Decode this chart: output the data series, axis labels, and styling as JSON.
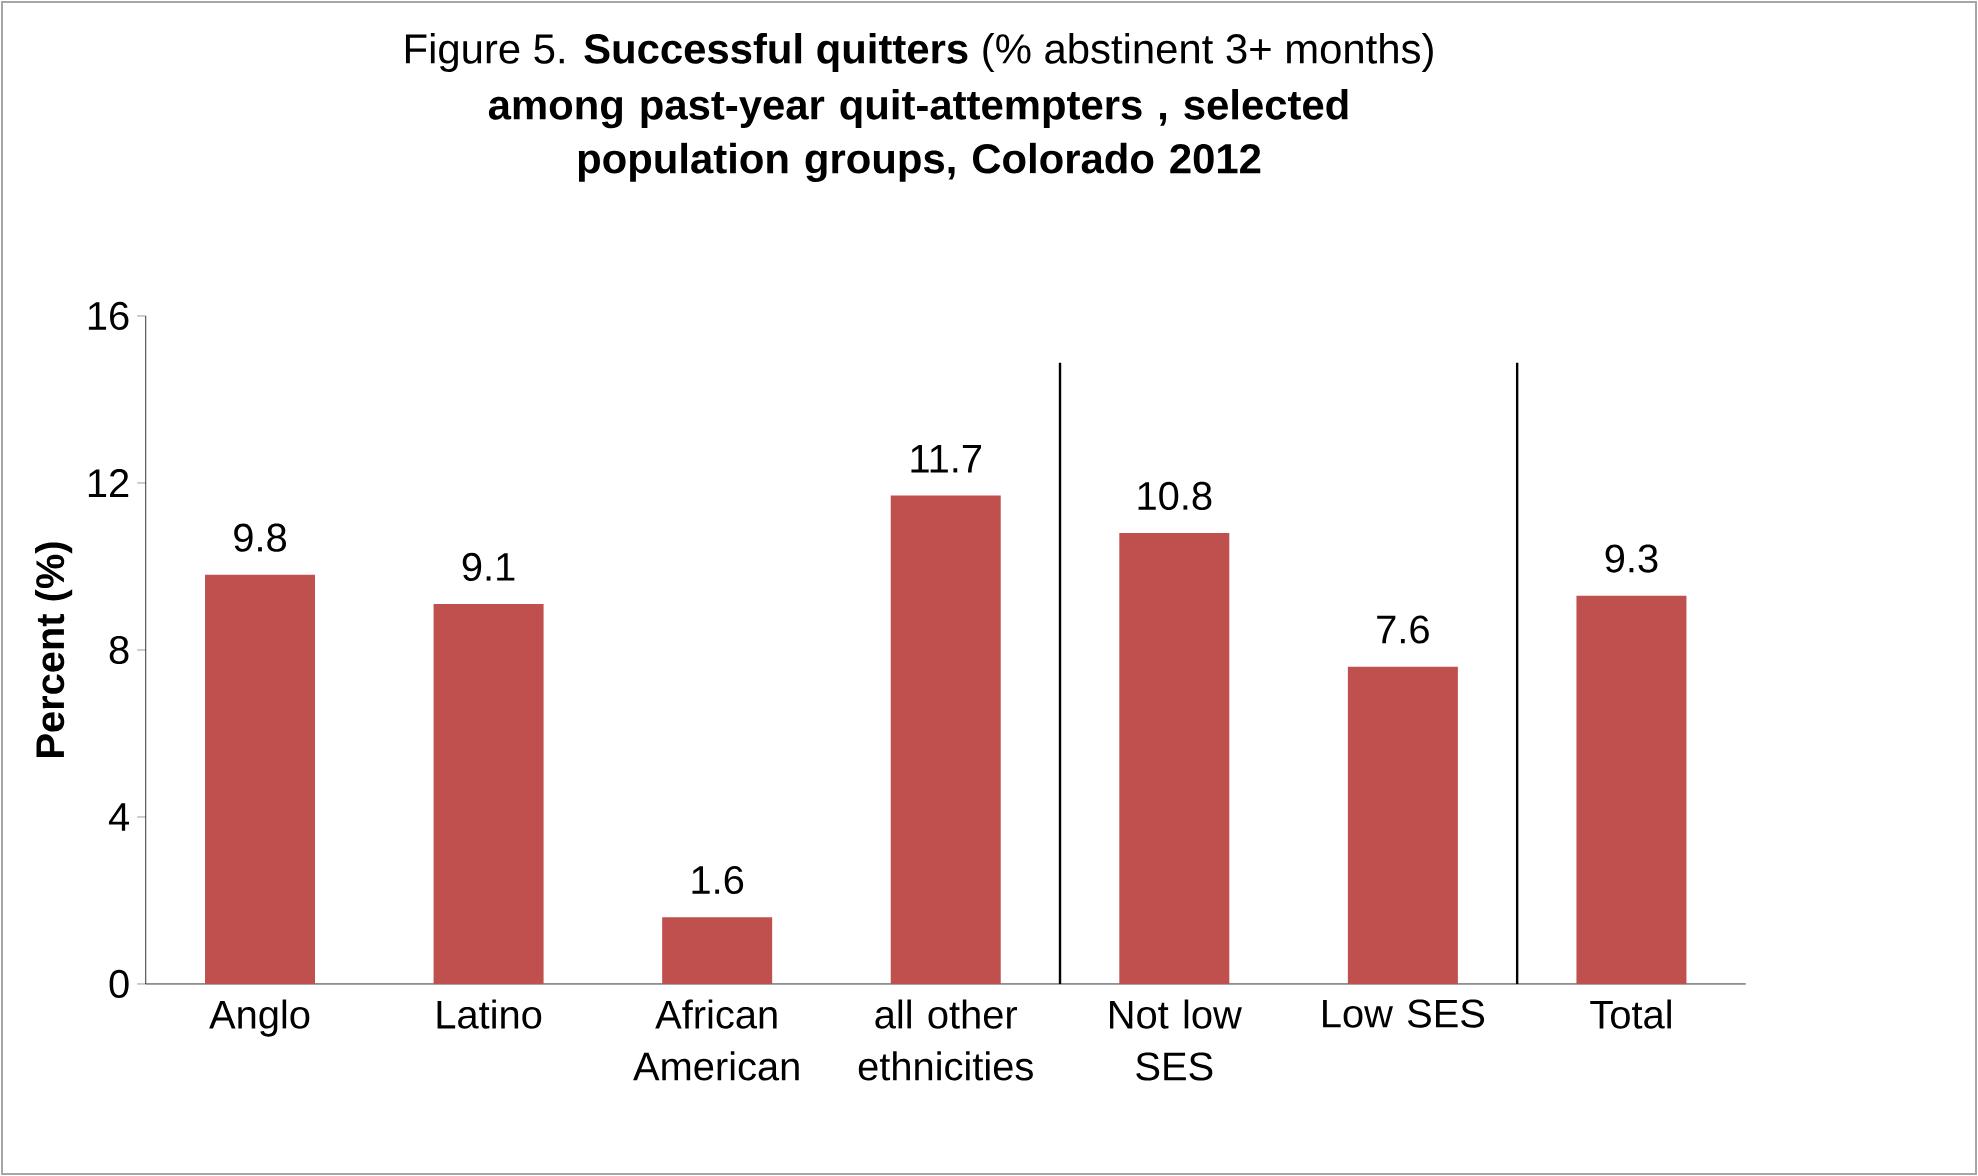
{
  "chart_data": {
    "type": "bar",
    "title": "Figure 5. **Successful quitters** (% abstinent 3+ months)",
    "subtitle": "among past-year quit-attempters , selected population groups, Colorado 2012",
    "ylabel": "Percent (%)",
    "categories": [
      "Anglo",
      "Latino",
      "African American",
      "all other ethnicities",
      "Not low SES",
      "Low SES",
      "Total"
    ],
    "values": [
      9.8,
      9.1,
      1.6,
      11.7,
      10.8,
      7.6,
      9.3
    ],
    "color": "#c0504d",
    "ylim": [
      0,
      16
    ],
    "yticks": [
      0,
      4,
      8,
      12,
      16
    ],
    "data_labels": true,
    "grid": false
  }
}
